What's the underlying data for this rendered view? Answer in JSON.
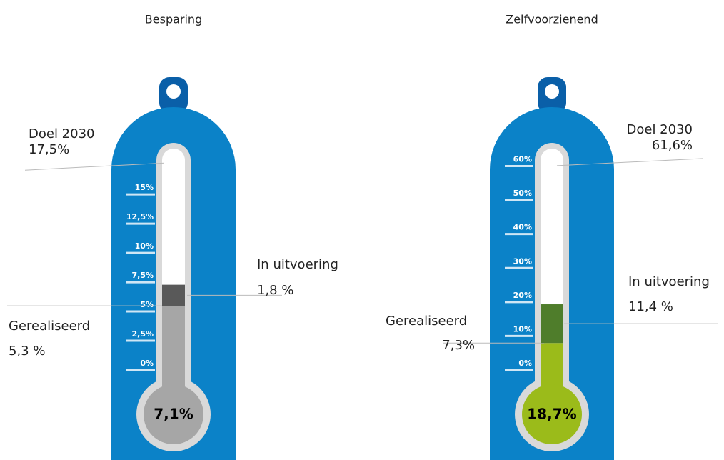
{
  "chart_data": [
    {
      "type": "thermometer",
      "title": "Besparing",
      "ylim": [
        0,
        18
      ],
      "yticks": [
        {
          "value": 0,
          "label": "0%"
        },
        {
          "value": 2.5,
          "label": "2,5%"
        },
        {
          "value": 5,
          "label": "5%"
        },
        {
          "value": 7.5,
          "label": "7,5%"
        },
        {
          "value": 10,
          "label": "10%"
        },
        {
          "value": 12.5,
          "label": "12,5%"
        },
        {
          "value": 15,
          "label": "15%"
        }
      ],
      "series": [
        {
          "name": "Gerealiseerd",
          "color": "#a6a6a6",
          "values": [
            5.3
          ],
          "value_labels": [
            "5,3 %"
          ]
        },
        {
          "name": "In uitvoering",
          "color": "#595959",
          "values": [
            1.8
          ],
          "value_labels": [
            "1,8 %"
          ]
        }
      ],
      "target": {
        "name": "Doel 2030",
        "value": 17.5,
        "value_label": "17,5%"
      },
      "total": {
        "value": 7.1,
        "value_label": "7,1%"
      }
    },
    {
      "type": "thermometer",
      "title": "Zelfvoorzienend",
      "ylim": [
        0,
        62
      ],
      "yticks": [
        {
          "value": 0,
          "label": "0%"
        },
        {
          "value": 10,
          "label": "10%"
        },
        {
          "value": 20,
          "label": "20%"
        },
        {
          "value": 30,
          "label": "30%"
        },
        {
          "value": 40,
          "label": "40%"
        },
        {
          "value": 50,
          "label": "50%"
        },
        {
          "value": 60,
          "label": "60%"
        }
      ],
      "series": [
        {
          "name": "Gerealiseerd",
          "color": "#9bbb1a",
          "values": [
            7.3
          ],
          "value_labels": [
            "7,3%"
          ]
        },
        {
          "name": "In uitvoering",
          "color": "#4f7d2b",
          "values": [
            11.4
          ],
          "value_labels": [
            "11,4 %"
          ]
        }
      ],
      "target": {
        "name": "Doel 2030",
        "value": 61.6,
        "value_label": "61,6%"
      },
      "total": {
        "value": 18.7,
        "value_label": "18,7%"
      }
    }
  ]
}
